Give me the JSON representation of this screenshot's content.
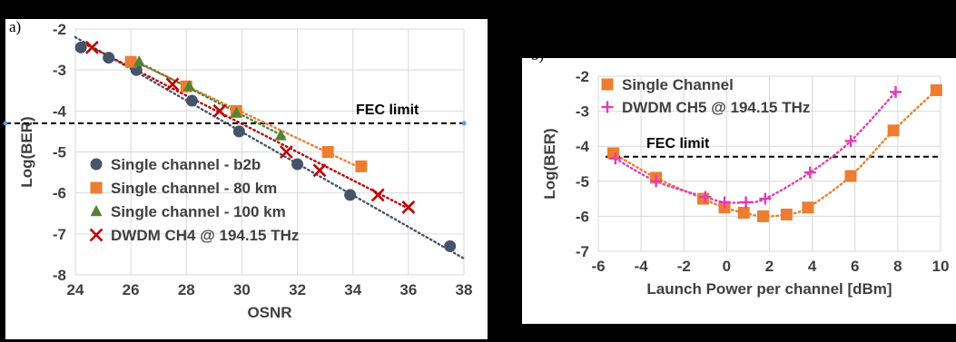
{
  "chart_data": [
    {
      "panel_label": "a)",
      "type": "scatter",
      "xlabel": "OSNR",
      "ylabel": "Log(BER)",
      "xlim": [
        24,
        38
      ],
      "ylim": [
        -8,
        -2
      ],
      "xticks": [
        "24",
        "26",
        "28",
        "30",
        "32",
        "34",
        "36",
        "38"
      ],
      "yticks": [
        "-2",
        "-3",
        "-4",
        "-5",
        "-6",
        "-7",
        "-8"
      ],
      "grid": true,
      "legend_position": "bottom-left",
      "annotation": {
        "text": "FEC limit",
        "y": -4.3
      },
      "series": [
        {
          "name": "Single channel - b2b",
          "marker": "circle",
          "color": "#44546a",
          "x": [
            24.2,
            25.2,
            26.2,
            28.2,
            29.9,
            32.0,
            33.9,
            37.5
          ],
          "y": [
            -2.45,
            -2.7,
            -3.0,
            -3.75,
            -4.5,
            -5.3,
            -6.05,
            -7.3
          ],
          "fit": {
            "x": [
              24.0,
              38.0
            ],
            "y": [
              -2.2,
              -7.6
            ]
          }
        },
        {
          "name": "Single channel - 80 km",
          "marker": "square",
          "color": "#ed7d31",
          "x": [
            26.0,
            28.0,
            29.8,
            33.1,
            34.3
          ],
          "y": [
            -2.8,
            -3.4,
            -4.0,
            -5.0,
            -5.35
          ],
          "fit": {
            "x": [
              26.0,
              34.3
            ],
            "y": [
              -2.75,
              -5.4
            ]
          }
        },
        {
          "name": "Single channel - 100 km",
          "marker": "triangle",
          "color": "#548235",
          "x": [
            26.3,
            28.1,
            29.8,
            31.4
          ],
          "y": [
            -2.8,
            -3.4,
            -4.05,
            -4.6
          ],
          "fit": {
            "x": [
              26.1,
              31.6
            ],
            "y": [
              -2.75,
              -4.65
            ]
          }
        },
        {
          "name": "DWDM CH4 @ 194.15 THz",
          "marker": "x",
          "color": "#c00000",
          "x": [
            24.6,
            27.5,
            29.2,
            31.6,
            32.8,
            34.9,
            36.0
          ],
          "y": [
            -2.45,
            -3.35,
            -4.0,
            -5.0,
            -5.45,
            -6.05,
            -6.35
          ],
          "fit": {
            "x": [
              24.3,
              36.2
            ],
            "y": [
              -2.35,
              -6.45
            ]
          }
        }
      ]
    },
    {
      "panel_label": "b)",
      "type": "scatter",
      "xlabel": "Launch Power per channel [dBm]",
      "ylabel": "Log(BER)",
      "xlim": [
        -6,
        10
      ],
      "ylim": [
        -7,
        -2
      ],
      "xticks": [
        "-6",
        "-4",
        "-2",
        "0",
        "2",
        "4",
        "6",
        "8",
        "10"
      ],
      "yticks": [
        "-2",
        "-3",
        "-4",
        "-5",
        "-6",
        "-7"
      ],
      "grid": true,
      "legend_position": "top-left",
      "annotation": {
        "text": "FEC limit",
        "y": -4.3
      },
      "series": [
        {
          "name": "Single Channel",
          "marker": "square",
          "color": "#ed7d31",
          "x": [
            -5.3,
            -3.3,
            -1.1,
            -0.1,
            0.8,
            1.7,
            2.8,
            3.8,
            5.8,
            7.8,
            9.8
          ],
          "y": [
            -4.2,
            -4.9,
            -5.5,
            -5.75,
            -5.9,
            -6.0,
            -5.95,
            -5.75,
            -4.85,
            -3.55,
            -2.4
          ]
        },
        {
          "name": "DWDM CH5 @ 194.15 THz",
          "marker": "plus",
          "color": "#e43ab5",
          "x": [
            -5.2,
            -3.3,
            -1.0,
            -0.1,
            0.9,
            1.8,
            3.9,
            5.8,
            7.9
          ],
          "y": [
            -4.35,
            -5.0,
            -5.45,
            -5.6,
            -5.6,
            -5.5,
            -4.75,
            -3.85,
            -2.45
          ]
        }
      ]
    }
  ]
}
